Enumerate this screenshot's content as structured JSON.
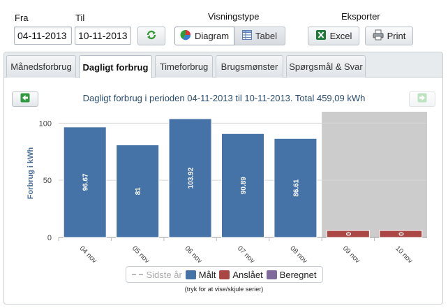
{
  "filters": {
    "from_label": "Fra",
    "from_value": "04-11-2013",
    "to_label": "Til",
    "to_value": "10-11-2013",
    "view_type_label": "Visningstype",
    "diagram_label": "Diagram",
    "table_label": "Tabel",
    "export_label": "Eksporter",
    "excel_label": "Excel",
    "print_label": "Print"
  },
  "tabs": [
    {
      "label": "Månedsforbrug",
      "active": false
    },
    {
      "label": "Dagligt forbrug",
      "active": true
    },
    {
      "label": "Timeforbrug",
      "active": false
    },
    {
      "label": "Brugsmønster",
      "active": false
    },
    {
      "label": "Spørgsmål & Svar",
      "active": false
    }
  ],
  "chart_data": {
    "type": "bar",
    "title": "Dagligt forbrug i perioden 04-11-2013 til 10-11-2013. Total 459,09 kWh",
    "ylabel": "Forbrug i kWh",
    "xlabel": "",
    "ylim": [
      0,
      110
    ],
    "yticks": [
      0,
      50,
      100
    ],
    "grid": true,
    "categories": [
      "04 nov",
      "05 nov",
      "06 nov",
      "07 nov",
      "08 nov",
      "09 nov",
      "10 nov"
    ],
    "series": [
      {
        "name": "Målt",
        "color": "#4572a7",
        "values": [
          96.67,
          81,
          103.92,
          90.89,
          86.61,
          null,
          null
        ]
      },
      {
        "name": "Anslået",
        "color": "#aa4643",
        "values": [
          null,
          null,
          null,
          null,
          null,
          0,
          0
        ]
      },
      {
        "name": "Beregnet",
        "color": "#80699b",
        "values": [
          null,
          null,
          null,
          null,
          null,
          null,
          null
        ]
      }
    ],
    "data_labels": [
      "96.67",
      "81",
      "103.92",
      "90.89",
      "86.61",
      "0",
      "0"
    ],
    "shaded_categories": [
      "09 nov",
      "10 nov"
    ],
    "legend": {
      "placement": "bottom",
      "items": [
        {
          "label": "Sidste år",
          "style": "dashed",
          "color": "#bbbbbb",
          "muted": true
        },
        {
          "label": "Målt",
          "color": "#4572a7",
          "muted": false
        },
        {
          "label": "Anslået",
          "color": "#aa4643",
          "muted": false
        },
        {
          "label": "Beregnet",
          "color": "#80699b",
          "muted": false
        }
      ],
      "hint": "(tryk for at vise/skjule serier)"
    }
  }
}
